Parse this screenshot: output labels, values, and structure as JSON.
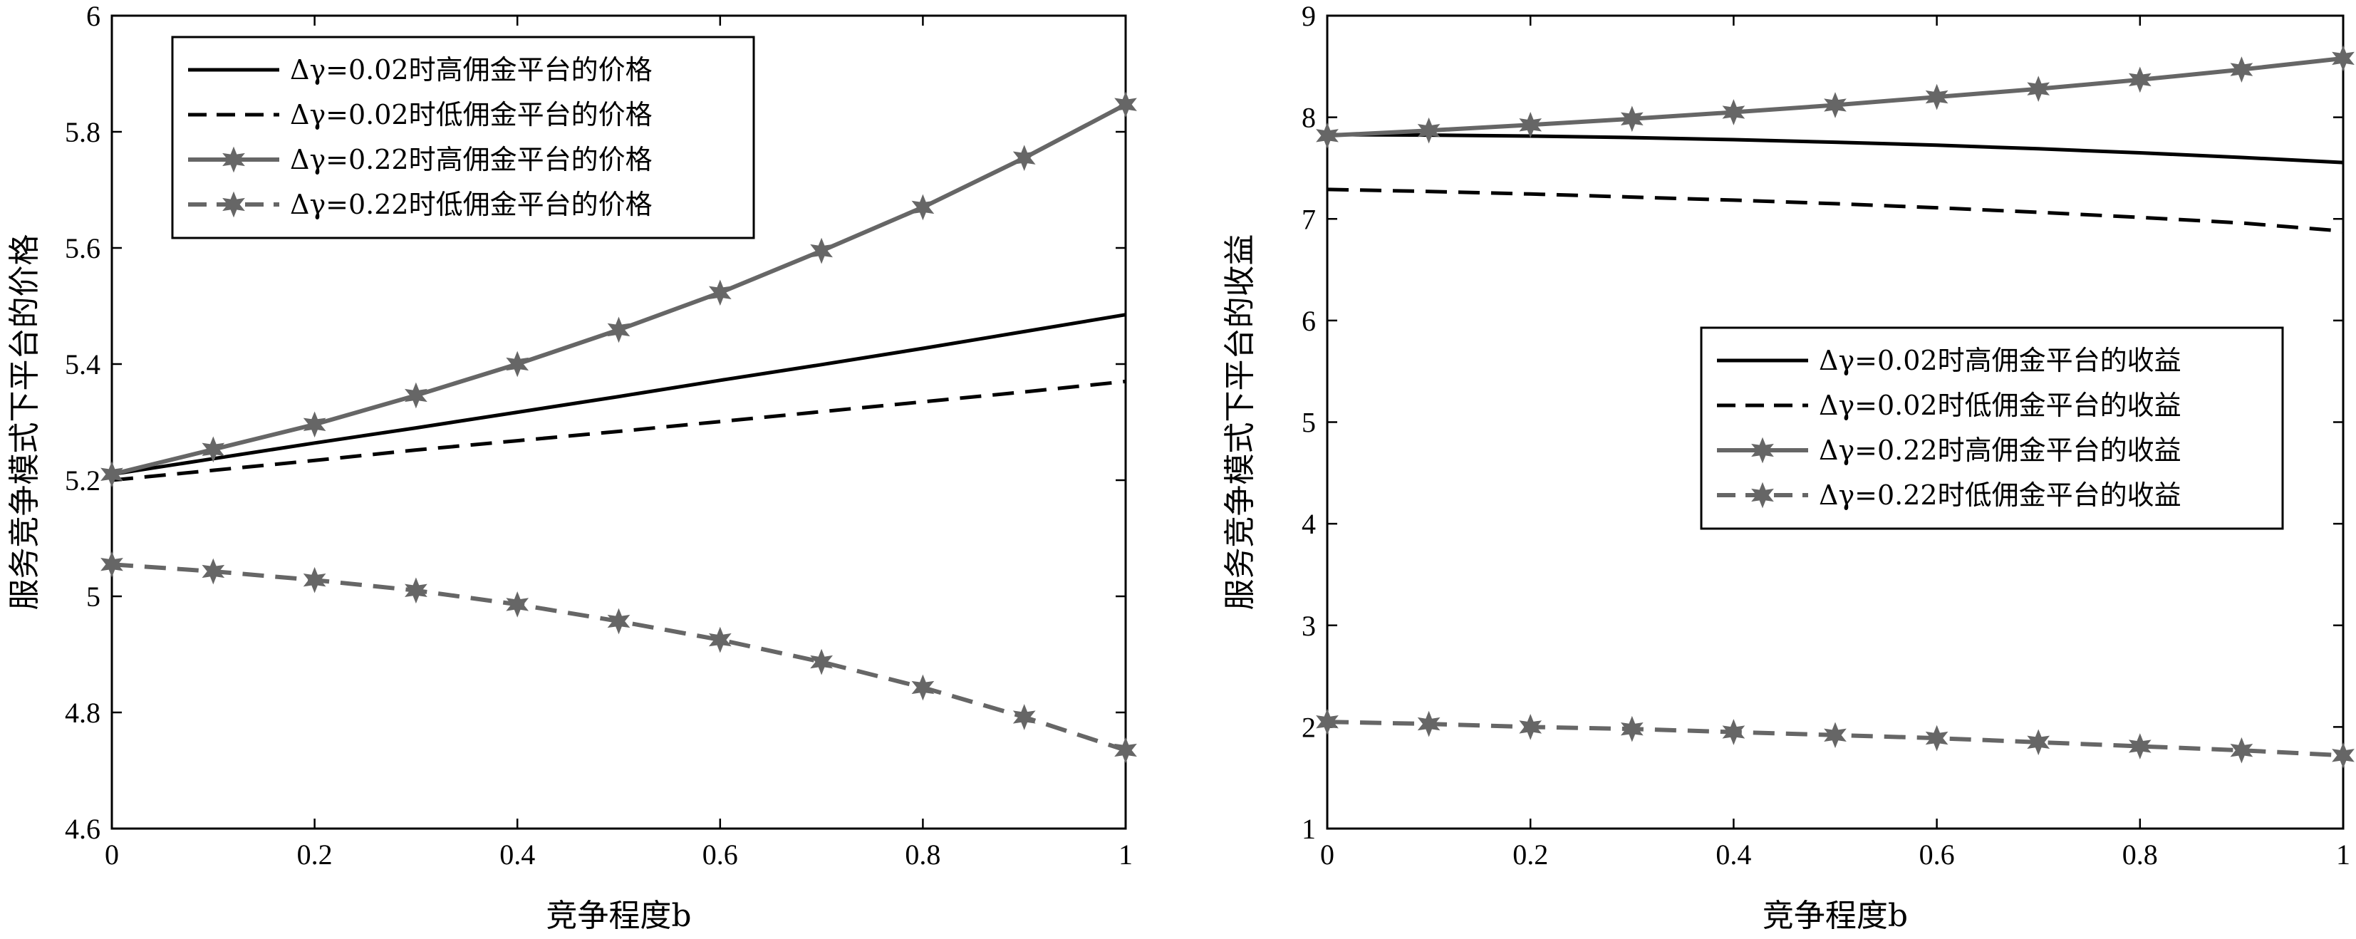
{
  "chart_data": [
    {
      "type": "line",
      "xlabel": "竞争程度b",
      "ylabel": "服务竞争模式下平台的价格",
      "xlim": [
        0,
        1
      ],
      "ylim": [
        4.6,
        6.0
      ],
      "xticks": [
        0,
        0.2,
        0.4,
        0.6,
        0.8,
        1
      ],
      "xtick_labels": [
        "0",
        "0.2",
        "0.4",
        "0.6",
        "0.8",
        "1"
      ],
      "yticks": [
        4.6,
        4.8,
        5.0,
        5.2,
        5.4,
        5.6,
        5.8,
        6.0
      ],
      "ytick_labels": [
        "4.6",
        "4.8",
        "5",
        "5.2",
        "5.4",
        "5.6",
        "5.8",
        "6"
      ],
      "grid": false,
      "legend_position": "top-left",
      "x": [
        0,
        0.1,
        0.2,
        0.3,
        0.4,
        0.5,
        0.6,
        0.7,
        0.8,
        0.9,
        1.0
      ],
      "series": [
        {
          "name": "Δγ=0.02时高佣金平台的价格",
          "color": "#000000",
          "dash": "solid",
          "marker": "none",
          "values": [
            5.21,
            5.237,
            5.264,
            5.29,
            5.317,
            5.344,
            5.372,
            5.399,
            5.427,
            5.456,
            5.485
          ]
        },
        {
          "name": "Δγ=0.02时低佣金平台的价格",
          "color": "#000000",
          "dash": "dashed",
          "marker": "none",
          "values": [
            5.2,
            5.217,
            5.234,
            5.252,
            5.268,
            5.284,
            5.301,
            5.318,
            5.335,
            5.352,
            5.37
          ]
        },
        {
          "name": "Δγ=0.22时高佣金平台的价格",
          "color": "#666666",
          "dash": "solid",
          "marker": "star",
          "values": [
            5.21,
            5.253,
            5.296,
            5.346,
            5.4,
            5.459,
            5.523,
            5.595,
            5.67,
            5.755,
            5.847
          ]
        },
        {
          "name": "Δγ=0.22时低佣金平台的价格",
          "color": "#666666",
          "dash": "dashed",
          "marker": "star",
          "values": [
            5.055,
            5.043,
            5.028,
            5.01,
            4.986,
            4.957,
            4.925,
            4.887,
            4.843,
            4.792,
            4.735
          ]
        }
      ]
    },
    {
      "type": "line",
      "xlabel": "竞争程度b",
      "ylabel": "服务竞争模式下平台的收益",
      "xlim": [
        0,
        1
      ],
      "ylim": [
        1,
        9
      ],
      "xticks": [
        0,
        0.2,
        0.4,
        0.6,
        0.8,
        1
      ],
      "xtick_labels": [
        "0",
        "0.2",
        "0.4",
        "0.6",
        "0.8",
        "1"
      ],
      "yticks": [
        1,
        2,
        3,
        4,
        5,
        6,
        7,
        8,
        9
      ],
      "ytick_labels": [
        "1",
        "2",
        "3",
        "4",
        "5",
        "6",
        "7",
        "8",
        "9"
      ],
      "grid": false,
      "legend_position": "middle-right",
      "x": [
        0,
        0.1,
        0.2,
        0.3,
        0.4,
        0.5,
        0.6,
        0.7,
        0.8,
        0.9,
        1.0
      ],
      "series": [
        {
          "name": "Δγ=0.02时高佣金平台的收益",
          "color": "#000000",
          "dash": "solid",
          "marker": "none",
          "values": [
            7.83,
            7.825,
            7.815,
            7.8,
            7.78,
            7.755,
            7.725,
            7.69,
            7.65,
            7.605,
            7.555
          ]
        },
        {
          "name": "Δγ=0.02时低佣金平台的收益",
          "color": "#000000",
          "dash": "dashed",
          "marker": "none",
          "values": [
            7.29,
            7.27,
            7.245,
            7.215,
            7.185,
            7.15,
            7.11,
            7.065,
            7.015,
            6.96,
            6.88
          ]
        },
        {
          "name": "Δγ=0.22时高佣金平台的收益",
          "color": "#666666",
          "dash": "solid",
          "marker": "star",
          "values": [
            7.82,
            7.87,
            7.925,
            7.985,
            8.05,
            8.12,
            8.2,
            8.28,
            8.37,
            8.47,
            8.58
          ]
        },
        {
          "name": "Δγ=0.22时低佣金平台的收益",
          "color": "#666666",
          "dash": "dashed",
          "marker": "star",
          "values": [
            2.05,
            2.03,
            2.0,
            1.98,
            1.95,
            1.92,
            1.89,
            1.85,
            1.81,
            1.77,
            1.72
          ]
        }
      ]
    }
  ]
}
